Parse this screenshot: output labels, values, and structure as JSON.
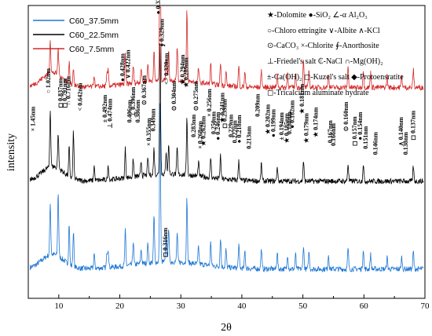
{
  "chart_data": {
    "type": "line",
    "xlabel": "2θ",
    "ylabel": "intensity",
    "xlim": [
      5,
      70
    ],
    "x_ticks": [
      10,
      20,
      30,
      40,
      50,
      60,
      70
    ],
    "y_ticks_shown": false,
    "grid": false,
    "legend_position": "top-left",
    "series": [
      {
        "name": "C60_37.5mm",
        "color": "#1f77d4",
        "offset": 0.0,
        "peaks": [
          [
            8.6,
            0.18
          ],
          [
            9.9,
            0.22
          ],
          [
            11.7,
            0.14
          ],
          [
            12.4,
            0.12
          ],
          [
            15.8,
            0.05
          ],
          [
            17.9,
            0.05
          ],
          [
            18.1,
            0.06
          ],
          [
            20.9,
            0.12
          ],
          [
            22.2,
            0.08
          ],
          [
            23.5,
            0.05
          ],
          [
            24.6,
            0.07
          ],
          [
            25.6,
            0.16
          ],
          [
            26.6,
            0.55
          ],
          [
            27.6,
            0.09
          ],
          [
            28.0,
            0.12
          ],
          [
            29.4,
            0.1
          ],
          [
            31.0,
            0.22
          ],
          [
            32.9,
            0.06
          ],
          [
            34.9,
            0.08
          ],
          [
            36.5,
            0.1
          ],
          [
            37.4,
            0.06
          ],
          [
            39.5,
            0.08
          ],
          [
            40.5,
            0.06
          ],
          [
            43.2,
            0.07
          ],
          [
            45.8,
            0.06
          ],
          [
            47.5,
            0.05
          ],
          [
            48.8,
            0.05
          ],
          [
            50.1,
            0.08
          ],
          [
            51.0,
            0.06
          ],
          [
            54.2,
            0.05
          ],
          [
            57.4,
            0.07
          ],
          [
            59.9,
            0.07
          ],
          [
            61.1,
            0.05
          ],
          [
            63.8,
            0.04
          ],
          [
            66.2,
            0.04
          ],
          [
            68.1,
            0.06
          ]
        ]
      },
      {
        "name": "C60_22.5mm",
        "color": "#000000",
        "offset": 0.3,
        "peaks": [
          [
            8.6,
            0.2
          ],
          [
            9.9,
            0.12
          ],
          [
            11.7,
            0.1
          ],
          [
            12.4,
            0.16
          ],
          [
            15.8,
            0.05
          ],
          [
            18.1,
            0.05
          ],
          [
            20.9,
            0.1
          ],
          [
            22.2,
            0.06
          ],
          [
            23.5,
            0.05
          ],
          [
            24.6,
            0.06
          ],
          [
            25.6,
            0.09
          ],
          [
            26.6,
            0.45
          ],
          [
            27.6,
            0.08
          ],
          [
            28.0,
            0.1
          ],
          [
            29.4,
            0.09
          ],
          [
            31.0,
            0.2
          ],
          [
            32.9,
            0.05
          ],
          [
            34.9,
            0.07
          ],
          [
            36.5,
            0.08
          ],
          [
            39.5,
            0.07
          ],
          [
            43.2,
            0.06
          ],
          [
            45.8,
            0.05
          ],
          [
            50.1,
            0.07
          ],
          [
            57.4,
            0.06
          ],
          [
            59.9,
            0.06
          ],
          [
            68.1,
            0.05
          ]
        ]
      },
      {
        "name": "C60_7.5mm",
        "color": "#d42a2a",
        "offset": 0.62,
        "peaks": [
          [
            8.6,
            0.12
          ],
          [
            9.9,
            0.09
          ],
          [
            11.7,
            0.07
          ],
          [
            12.4,
            0.06
          ],
          [
            15.8,
            0.04
          ],
          [
            17.9,
            0.04
          ],
          [
            18.1,
            0.05
          ],
          [
            20.9,
            0.1
          ],
          [
            22.2,
            0.06
          ],
          [
            23.5,
            0.05
          ],
          [
            24.6,
            0.06
          ],
          [
            25.6,
            0.1
          ],
          [
            26.6,
            0.85
          ],
          [
            27.6,
            0.08
          ],
          [
            28.0,
            0.1
          ],
          [
            29.4,
            0.12
          ],
          [
            31.0,
            0.24
          ],
          [
            32.9,
            0.05
          ],
          [
            34.9,
            0.07
          ],
          [
            36.5,
            0.08
          ],
          [
            37.4,
            0.05
          ],
          [
            39.5,
            0.07
          ],
          [
            40.5,
            0.05
          ],
          [
            43.2,
            0.06
          ],
          [
            45.8,
            0.05
          ],
          [
            47.5,
            0.05
          ],
          [
            48.8,
            0.05
          ],
          [
            50.1,
            0.09
          ],
          [
            51.0,
            0.06
          ],
          [
            54.2,
            0.05
          ],
          [
            57.4,
            0.07
          ],
          [
            59.9,
            0.06
          ],
          [
            61.1,
            0.05
          ],
          [
            63.8,
            0.04
          ],
          [
            66.2,
            0.04
          ],
          [
            68.1,
            0.06
          ]
        ]
      }
    ],
    "phase_key": [
      "★-Dolomite  ●-SiO₂  ∠-α Al₂O₃",
      "○-Chloro ettringite ∨-Albite ∧-KCl",
      "⊙-CaCO₃  ×-Chlorite  ∮-Anorthosite",
      "⊥-Friedel's salt  ₵-NaCl  ∩-Mg(OH)₂",
      "±-Ca(OH)₂  ◻-Kuzel's salt  ◆-Protoensratite",
      "◻-Tricalcium aluminate hydrate"
    ],
    "annotations": [
      {
        "x": 26.6,
        "text": "0.336nm",
        "sym": "●",
        "y": 0.97
      },
      {
        "x": 27.2,
        "text": "0.329nm",
        "sym": "∮",
        "y": 0.86
      },
      {
        "x": 28.0,
        "text": "<> 0.320nm",
        "sym": "",
        "y": 0.73
      },
      {
        "x": 30.6,
        "text": "0.294nm",
        "sym": "★",
        "y": 0.73
      },
      {
        "x": 31.2,
        "text": "0.289nm",
        "sym": "★",
        "y": 0.72
      },
      {
        "x": 8.6,
        "text": "1.02nm",
        "sym": "○",
        "y": 0.7
      },
      {
        "x": 10.6,
        "text": "0.837nm",
        "sym": "◻",
        "y": 0.65
      },
      {
        "x": 11.3,
        "text": "0.791nm",
        "sym": "◻",
        "y": 0.65
      },
      {
        "x": 11.9,
        "text": "0.716nm",
        "sym": "∩",
        "y": 0.66
      },
      {
        "x": 13.8,
        "text": "0.642nm",
        "sym": "<",
        "y": 0.64
      },
      {
        "x": 6.1,
        "text": "1.45nm",
        "sym": "×",
        "y": 0.57
      },
      {
        "x": 17.9,
        "text": "0.492nm",
        "sym": "±",
        "y": 0.6
      },
      {
        "x": 18.7,
        "text": "0.474nm",
        "sym": "⊥",
        "y": 0.58
      },
      {
        "x": 20.8,
        "text": "0.428nm",
        "sym": "●",
        "y": 0.74
      },
      {
        "x": 21.7,
        "text": "0.422nm",
        "sym": "∨",
        "y": 0.75
      },
      {
        "x": 21.9,
        "text": "0.406nm",
        "sym": "",
        "y": 0.6
      },
      {
        "x": 22.5,
        "text": "0.396nm",
        "sym": "⊥",
        "y": 0.62
      },
      {
        "x": 23.3,
        "text": "0.386nm",
        "sym": "",
        "y": 0.6
      },
      {
        "x": 24.3,
        "text": "0.367nm",
        "sym": "⊙",
        "y": 0.66
      },
      {
        "x": 25.1,
        "text": "0.355nm",
        "sym": "×",
        "y": 0.52
      },
      {
        "x": 25.8,
        "text": "0.349nm",
        "sym": "",
        "y": 0.57
      },
      {
        "x": 29.2,
        "text": "0.304nm",
        "sym": "⊙",
        "y": 0.64
      },
      {
        "x": 32.8,
        "text": "0.275nm",
        "sym": "⊙",
        "y": 0.64
      },
      {
        "x": 32.4,
        "text": "0.283nm",
        "sym": "",
        "y": 0.55
      },
      {
        "x": 33.5,
        "text": "0.268nm",
        "sym": "×",
        "y": 0.51
      },
      {
        "x": 34.0,
        "text": "0.262nm",
        "sym": "★",
        "y": 0.52
      },
      {
        "x": 35.0,
        "text": "0.256nm",
        "sym": "×",
        "y": 0.62
      },
      {
        "x": 35.7,
        "text": "0.250nm",
        "sym": "",
        "y": 0.56
      },
      {
        "x": 36.4,
        "text": "0.246nm",
        "sym": "●",
        "y": 0.54
      },
      {
        "x": 37.1,
        "text": "0.241nm",
        "sym": "★",
        "y": 0.6
      },
      {
        "x": 37.5,
        "text": "0.239nm",
        "sym": "◻",
        "y": 0.58
      },
      {
        "x": 38.5,
        "text": "0.229nm",
        "sym": "",
        "y": 0.55
      },
      {
        "x": 39.2,
        "text": "0.222nm",
        "sym": "",
        "y": 0.53
      },
      {
        "x": 39.9,
        "text": "0.218nm",
        "sym": "●",
        "y": 0.53
      },
      {
        "x": 41.5,
        "text": "0.213nm",
        "sym": "",
        "y": 0.51
      },
      {
        "x": 42.9,
        "text": "0.209nm",
        "sym": "",
        "y": 0.62
      },
      {
        "x": 44.6,
        "text": "0.202nm",
        "sym": "★",
        "y": 0.56
      },
      {
        "x": 45.5,
        "text": "0.199nm",
        "sym": "●",
        "y": 0.55
      },
      {
        "x": 46.8,
        "text": "0.194nm",
        "sym": "±",
        "y": 0.54
      },
      {
        "x": 48.1,
        "text": "0.188nm",
        "sym": "",
        "y": 0.56
      },
      {
        "x": 47.7,
        "text": "0.185nm",
        "sym": "★",
        "y": 0.53
      },
      {
        "x": 48.6,
        "text": "0.182nm",
        "sym": "●",
        "y": 0.58
      },
      {
        "x": 50.2,
        "text": "0.181nm",
        "sym": "★",
        "y": 0.63
      },
      {
        "x": 50.9,
        "text": "0.179nm",
        "sym": "★",
        "y": 0.53
      },
      {
        "x": 52.4,
        "text": "0.174nm",
        "sym": "★",
        "y": 0.55
      },
      {
        "x": 54.8,
        "text": "0.167nm",
        "sym": "",
        "y": 0.53
      },
      {
        "x": 55.3,
        "text": "0.166nm",
        "sym": "",
        "y": 0.52
      },
      {
        "x": 57.4,
        "text": "0.160nm",
        "sym": "⊙",
        "y": 0.57
      },
      {
        "x": 58.8,
        "text": "0.157nm",
        "sym": "◻",
        "y": 0.52
      },
      {
        "x": 59.7,
        "text": "0.154nm",
        "sym": "●",
        "y": 0.54
      },
      {
        "x": 60.6,
        "text": "0.151nm",
        "sym": "",
        "y": 0.51
      },
      {
        "x": 62.2,
        "text": "0.146nm",
        "sym": "",
        "y": 0.49
      },
      {
        "x": 66.4,
        "text": "0.140nm",
        "sym": "∧",
        "y": 0.52
      },
      {
        "x": 67.2,
        "text": "0.138nm",
        "sym": "",
        "y": 0.49
      },
      {
        "x": 68.4,
        "text": "0.137nm",
        "sym": "◻",
        "y": 0.54
      },
      {
        "x": 27.8,
        "text": "0.316nm",
        "sym": "◻",
        "y": 0.14
      }
    ]
  }
}
